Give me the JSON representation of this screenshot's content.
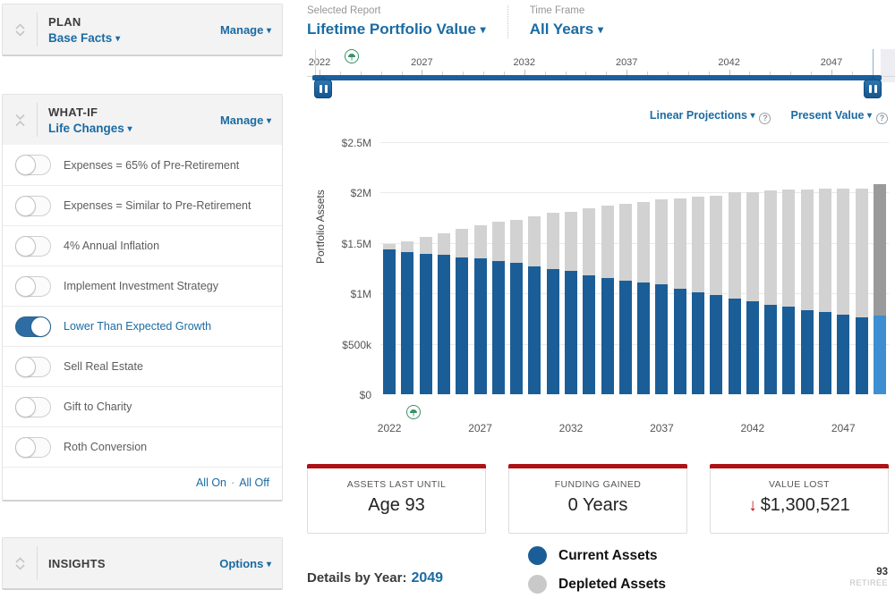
{
  "sidebar": {
    "plan": {
      "title": "PLAN",
      "subtitle": "Base Facts",
      "manage": "Manage"
    },
    "whatif": {
      "title": "WHAT-IF",
      "subtitle": "Life Changes",
      "manage": "Manage",
      "toggles": [
        {
          "label": "Expenses = 65% of Pre-Retirement",
          "on": false
        },
        {
          "label": "Expenses = Similar to Pre-Retirement",
          "on": false
        },
        {
          "label": "4% Annual Inflation",
          "on": false
        },
        {
          "label": "Implement Investment Strategy",
          "on": false
        },
        {
          "label": "Lower Than Expected Growth",
          "on": true
        },
        {
          "label": "Sell Real Estate",
          "on": false
        },
        {
          "label": "Gift to Charity",
          "on": false
        },
        {
          "label": "Roth Conversion",
          "on": false
        }
      ],
      "all_on": "All On",
      "all_off": "All Off",
      "separator": "·"
    },
    "insights": {
      "title": "INSIGHTS",
      "options": "Options"
    }
  },
  "report_header": {
    "selected_report_label": "Selected Report",
    "selected_report_value": "Lifetime Portfolio Value",
    "time_frame_label": "Time Frame",
    "time_frame_value": "All Years"
  },
  "timeline": {
    "start_year": 2022,
    "end_year": 2049,
    "labeled_years": [
      2022,
      2027,
      2032,
      2037,
      2042,
      2047
    ]
  },
  "chart_controls": {
    "projection_label": "Linear Projections",
    "value_label": "Present Value"
  },
  "chart_data": {
    "type": "bar",
    "stacked": true,
    "ylabel": "Portfolio Assets",
    "x": [
      2022,
      2023,
      2024,
      2025,
      2026,
      2027,
      2028,
      2029,
      2030,
      2031,
      2032,
      2033,
      2034,
      2035,
      2036,
      2037,
      2038,
      2039,
      2040,
      2041,
      2042,
      2043,
      2044,
      2045,
      2046,
      2047,
      2048,
      2049
    ],
    "series": [
      {
        "name": "Current Assets",
        "color": "#1b5e97",
        "values_millions": [
          1.44,
          1.41,
          1.39,
          1.38,
          1.36,
          1.35,
          1.32,
          1.3,
          1.27,
          1.24,
          1.22,
          1.18,
          1.15,
          1.13,
          1.11,
          1.09,
          1.05,
          1.01,
          0.98,
          0.95,
          0.92,
          0.89,
          0.87,
          0.83,
          0.82,
          0.79,
          0.76,
          0.78
        ]
      },
      {
        "name": "Depleted Assets",
        "color": "#d2d2d2",
        "values_millions": [
          0.05,
          0.11,
          0.17,
          0.22,
          0.28,
          0.33,
          0.39,
          0.43,
          0.49,
          0.56,
          0.59,
          0.66,
          0.72,
          0.76,
          0.8,
          0.84,
          0.89,
          0.95,
          0.99,
          1.05,
          1.08,
          1.13,
          1.16,
          1.2,
          1.22,
          1.25,
          1.28,
          1.3
        ]
      }
    ],
    "highlight_year": 2049,
    "highlight_colors": {
      "current": "#3d8fd1",
      "depleted": "#9a9a9a"
    },
    "ylim_millions": [
      0,
      2.5
    ],
    "ytick_labels": [
      "$0",
      "$500k",
      "$1M",
      "$1.5M",
      "$2M",
      "$2.5M"
    ],
    "xtick_labels": [
      "2022",
      "2027",
      "2032",
      "2037",
      "2042",
      "2047"
    ],
    "grid": true,
    "legend_position": "bottom"
  },
  "stats": [
    {
      "label": "ASSETS LAST UNTIL",
      "value": "Age 93"
    },
    {
      "label": "FUNDING GAINED",
      "value": "0 Years"
    },
    {
      "label": "VALUE LOST",
      "value": "$1,300,521",
      "arrow": "↓"
    }
  ],
  "footer": {
    "details_label": "Details by Year:",
    "details_year": "2049",
    "legend": [
      {
        "label": "Current Assets",
        "color": "#1b5e97"
      },
      {
        "label": "Depleted Assets",
        "color": "#c9c9c9"
      }
    ],
    "age": "93",
    "role": "RETIREE"
  }
}
